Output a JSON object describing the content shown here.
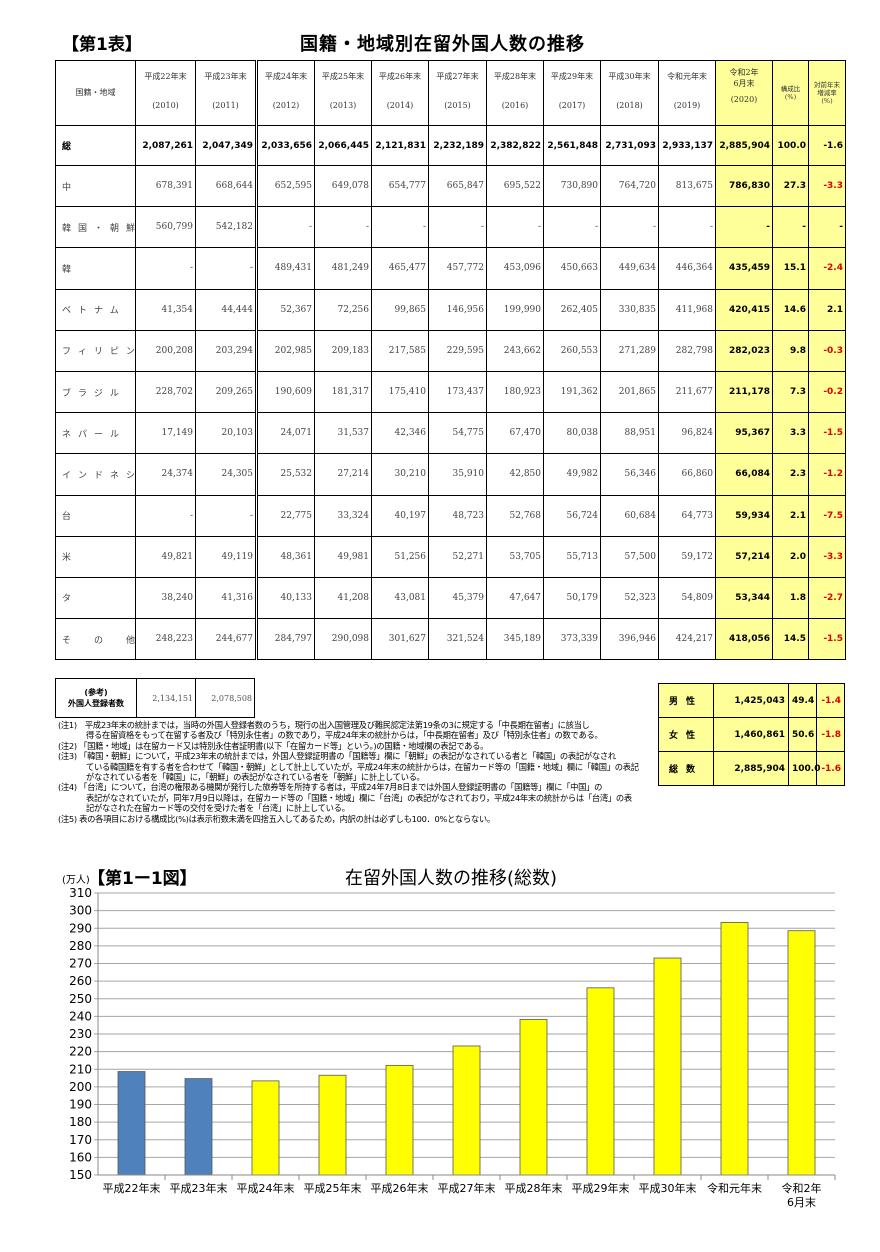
{
  "table": {
    "label": "【第1表】",
    "title": "国籍・地域別在留外国人数の推移",
    "header_label": "国籍・地域",
    "columns": [
      {
        "era": "平成22年末",
        "year": "(2010)"
      },
      {
        "era": "平成23年末",
        "year": "(2011)"
      },
      {
        "era": "平成24年末",
        "year": "(2012)"
      },
      {
        "era": "平成25年末",
        "year": "(2013)"
      },
      {
        "era": "平成26年末",
        "year": "(2014)"
      },
      {
        "era": "平成27年末",
        "year": "(2015)"
      },
      {
        "era": "平成28年末",
        "year": "(2016)"
      },
      {
        "era": "平成29年末",
        "year": "(2017)"
      },
      {
        "era": "平成30年末",
        "year": "(2018)"
      },
      {
        "era": "令和元年末",
        "year": "(2019)"
      },
      {
        "era": "令和2年\n6月末",
        "year": "(2020)"
      }
    ],
    "ratio_header": "構成比\n(%)",
    "change_header": "対前年末\n増減率\n(%)",
    "rows": [
      {
        "label": "総　　　　　数",
        "total": true,
        "values": [
          "2,087,261",
          "2,047,349",
          "2,033,656",
          "2,066,445",
          "2,121,831",
          "2,232,189",
          "2,382,822",
          "2,561,848",
          "2,731,093",
          "2,933,137",
          "2,885,904"
        ],
        "ratio": "100.0",
        "change": "-1.6"
      },
      {
        "label": "中　　　　国",
        "values": [
          "678,391",
          "668,644",
          "652,595",
          "649,078",
          "654,777",
          "665,847",
          "695,522",
          "730,890",
          "764,720",
          "813,675",
          "786,830"
        ],
        "ratio": "27.3",
        "change": "-3.3"
      },
      {
        "label": "韓国・朝鮮",
        "values": [
          "560,799",
          "542,182",
          "-",
          "-",
          "-",
          "-",
          "-",
          "-",
          "-",
          "-",
          "-"
        ],
        "ratio": "-",
        "change": "-"
      },
      {
        "label": "韓　　　　国",
        "values": [
          "-",
          "-",
          "489,431",
          "481,249",
          "465,477",
          "457,772",
          "453,096",
          "450,663",
          "449,634",
          "446,364",
          "435,459"
        ],
        "ratio": "15.1",
        "change": "-2.4"
      },
      {
        "label": "ベトナム",
        "values": [
          "41,354",
          "44,444",
          "52,367",
          "72,256",
          "99,865",
          "146,956",
          "199,990",
          "262,405",
          "330,835",
          "411,968",
          "420,415"
        ],
        "ratio": "14.6",
        "change": "2.1"
      },
      {
        "label": "フィリピン",
        "values": [
          "200,208",
          "203,294",
          "202,985",
          "209,183",
          "217,585",
          "229,595",
          "243,662",
          "260,553",
          "271,289",
          "282,798",
          "282,023"
        ],
        "ratio": "9.8",
        "change": "-0.3"
      },
      {
        "label": "ブラジル",
        "values": [
          "228,702",
          "209,265",
          "190,609",
          "181,317",
          "175,410",
          "173,437",
          "180,923",
          "191,362",
          "201,865",
          "211,677",
          "211,178"
        ],
        "ratio": "7.3",
        "change": "-0.2"
      },
      {
        "label": "ネパール",
        "values": [
          "17,149",
          "20,103",
          "24,071",
          "31,537",
          "42,346",
          "54,775",
          "67,470",
          "80,038",
          "88,951",
          "96,824",
          "95,367"
        ],
        "ratio": "3.3",
        "change": "-1.5"
      },
      {
        "label": "インドネシア",
        "values": [
          "24,374",
          "24,305",
          "25,532",
          "27,214",
          "30,210",
          "35,910",
          "42,850",
          "49,982",
          "56,346",
          "66,860",
          "66,084"
        ],
        "ratio": "2.3",
        "change": "-1.2"
      },
      {
        "label": "台　　　　湾",
        "values": [
          "-",
          "-",
          "22,775",
          "33,324",
          "40,197",
          "48,723",
          "52,768",
          "56,724",
          "60,684",
          "64,773",
          "59,934"
        ],
        "ratio": "2.1",
        "change": "-7.5"
      },
      {
        "label": "米　　　　国",
        "values": [
          "49,821",
          "49,119",
          "48,361",
          "49,981",
          "51,256",
          "52,271",
          "53,705",
          "55,713",
          "57,500",
          "59,172",
          "57,214"
        ],
        "ratio": "2.0",
        "change": "-3.3"
      },
      {
        "label": "タ　　　　イ",
        "values": [
          "38,240",
          "41,316",
          "40,133",
          "41,208",
          "43,081",
          "45,379",
          "47,647",
          "50,179",
          "52,323",
          "54,809",
          "53,344"
        ],
        "ratio": "1.8",
        "change": "-2.7"
      },
      {
        "label": "そ　の　他",
        "values": [
          "248,223",
          "244,677",
          "284,797",
          "290,098",
          "301,627",
          "321,524",
          "345,189",
          "373,339",
          "396,946",
          "424,217",
          "418,056"
        ],
        "ratio": "14.5",
        "change": "-1.5"
      }
    ]
  },
  "reference": {
    "label": "(参考)\n外国人登録者数",
    "values": [
      "2,134,151",
      "2,078,508"
    ]
  },
  "sex_table": [
    {
      "label": "男性",
      "value": "1,425,043",
      "ratio": "49.4",
      "change": "-1.4"
    },
    {
      "label": "女性",
      "value": "1,460,861",
      "ratio": "50.6",
      "change": "-1.8"
    },
    {
      "label": "総数",
      "value": "2,885,904",
      "ratio": "100.0",
      "change": "-1.6"
    }
  ],
  "notes": [
    {
      "head": "(注1)　平成23年末の統計までは，当時の外国人登録者数のうち，現行の出入国管理及び難民認定法第19条の3に規定する「中長期在留者」に該当し",
      "cont": [
        "得る在留資格をもって在留する者及び「特別永住者」の数であり，平成24年末の統計からは，「中長期在留者」及び「特別永住者」の数である。"
      ]
    },
    {
      "head": "(注2) 「国籍・地域」は在留カード又は特別永住者証明書(以下「在留カード等」という。)の国籍・地域欄の表記である。",
      "cont": []
    },
    {
      "head": "(注3) 「韓国・朝鮮」について，平成23年末の統計までは，外国人登録証明書の「国籍等」欄に「朝鮮」の表記がなされている者と「韓国」の表記がなされ",
      "cont": [
        "ている韓国籍を有する者を合わせて「韓国・朝鮮」として計上していたが，平成24年末の統計からは，在留カード等の「国籍・地域」欄に「韓国」の表記",
        "がなされている者を「韓国」に，「朝鮮」の表記がなされている者を「朝鮮」に計上している。"
      ]
    },
    {
      "head": "(注4) 「台湾」について，台湾の権限ある機関が発行した旅券等を所持する者は，平成24年7月8日までは外国人登録証明書の「国籍等」欄に「中国」の",
      "cont": [
        "表記がなされていたが，同年7月9日以降は，在留カード等の「国籍・地域」欄に「台湾」の表記がなされており，平成24年末の統計からは「台湾」の表",
        "記がなされた在留カード等の交付を受けた者を「台湾」に計上している。"
      ]
    },
    {
      "head": "(注5) 表の各項目における構成比(%)は表示桁数未満を四捨五入してあるため，内訳の計は必ずしも100．0%とならない。",
      "cont": []
    }
  ],
  "chart_data": {
    "type": "bar",
    "label": "【第1ー1図】",
    "title": "在留外国人数の推移(総数)",
    "ylabel": "(万人)",
    "categories": [
      "平成22年末",
      "平成23年末",
      "平成24年末",
      "平成25年末",
      "平成26年末",
      "平成27年末",
      "平成28年末",
      "平成29年末",
      "平成30年末",
      "令和元年末",
      "令和2年\n6月末"
    ],
    "values": [
      208.7,
      204.7,
      203.4,
      206.6,
      212.2,
      223.2,
      238.3,
      256.2,
      273.1,
      293.3,
      288.6
    ],
    "ylim": [
      150,
      310
    ],
    "yticks": [
      150,
      160,
      170,
      180,
      190,
      200,
      210,
      220,
      230,
      240,
      250,
      260,
      270,
      280,
      290,
      300,
      310
    ],
    "grid": true,
    "colors": {
      "registered": "#4f81bd",
      "resident_card": "#ffff00"
    },
    "bar_colors": [
      "registered",
      "registered",
      "resident_card",
      "resident_card",
      "resident_card",
      "resident_card",
      "resident_card",
      "resident_card",
      "resident_card",
      "resident_card",
      "resident_card"
    ]
  }
}
